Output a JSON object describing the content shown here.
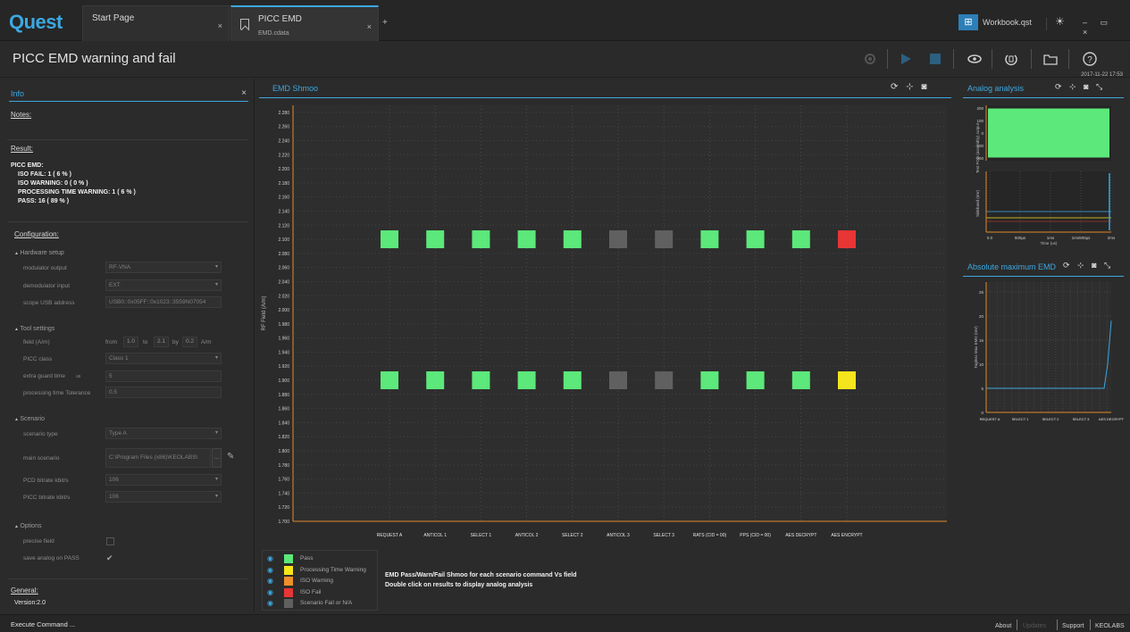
{
  "app": {
    "logo_text": "Quest"
  },
  "tabs": [
    {
      "title": "Start Page",
      "subtitle": "",
      "close": "×"
    },
    {
      "title": "PICC EMD",
      "subtitle": "EMD.cdata",
      "close": "×"
    }
  ],
  "tab_add": "+",
  "workbook": {
    "label": "Workbook.qst",
    "icon_glyph": "⊞"
  },
  "window_controls": "– ▭ ×",
  "brightness_glyph": "☀",
  "page_title": "PICC EMD warning and fail",
  "timestamp": "2017-11-22 17:53",
  "toolbar": {
    "icons": [
      "settings-icon",
      "play-icon",
      "stop-icon",
      "eye-icon",
      "rotate-icon",
      "folder-icon",
      "help-icon"
    ]
  },
  "info": {
    "title": "Info",
    "close": "×",
    "notes_label": "Notes:",
    "result_label": "Result:",
    "result_lines": [
      "PICC EMD:",
      "ISO FAIL: 1 ( 6 % )",
      "ISO WARNING: 0 ( 0 % )",
      "PROCESSING TIME WARNING: 1 ( 6 % )",
      "PASS: 16 ( 89 % )"
    ],
    "configuration_label": "Configuration:",
    "hardware": {
      "title": "Hardware setup",
      "modulator_label": "modulator output",
      "modulator_value": "RF-VNA",
      "demodulator_label": "demodulator input",
      "demodulator_value": "EXT",
      "scope_label": "scope USB address",
      "scope_value": "USB0::0x05FF::0x1023::3559N07054"
    },
    "tool": {
      "title": "Tool settings",
      "field_label": "field (A/m)",
      "from_label": "from",
      "from_value": "1.0",
      "to_label": "to",
      "to_value": "2.1",
      "by_label": "by",
      "by_value": "0.2",
      "unit": "A/m",
      "picc_class_label": "PICC class",
      "picc_class_value": "Class 1",
      "extra_guard_label": "extra guard time",
      "extra_guard_unit": "us",
      "extra_guard_value": "5",
      "proc_tol_label": "processing time Tolerance",
      "proc_tol_value": "0.5"
    },
    "scenario": {
      "title": "Scenario",
      "type_label": "scenario type",
      "type_value": "Type A",
      "main_label": "main scenario",
      "main_value": "C:\\Program Files (x86)\\KEOLABS\\",
      "pcd_label": "PCD bitrate kbit/s",
      "pcd_value": "106",
      "picc_label": "PICC bitrate kbit/s",
      "picc_value": "106"
    },
    "options": {
      "title": "Options",
      "precise_label": "precise field",
      "save_label": "save analog on PASS",
      "save_check": "✔"
    },
    "general_label": "General:",
    "version": "Version:2.0"
  },
  "shmoo": {
    "title": "EMD Shmoo",
    "header_icons": "⟳ ⊹ ◙",
    "legend": [
      {
        "label": "Pass",
        "color": "#5ce87a"
      },
      {
        "label": "Processing Time Warning",
        "color": "#f5e51c"
      },
      {
        "label": "ISO Warning",
        "color": "#f0902a"
      },
      {
        "label": "ISO Fail",
        "color": "#e83535"
      },
      {
        "label": "Scenario Fail or N/A",
        "color": "#606060"
      }
    ],
    "desc_line1": "EMD Pass/Warn/Fail Shmoo for each scenario command Vs field",
    "desc_line2": "Double click on results to display analog analysis"
  },
  "chart_data": [
    {
      "type": "heatmap",
      "title": "EMD Shmoo",
      "ylabel": "RF Field (A/m)",
      "ylim": [
        1.7,
        2.29
      ],
      "yticks": [
        "2.280",
        "2.260",
        "2.240",
        "2.220",
        "2.200",
        "2.180",
        "2.160",
        "2.140",
        "2.120",
        "2.100",
        "2.080",
        "2.060",
        "2.040",
        "2.020",
        "2.000",
        "1.980",
        "1.960",
        "1.940",
        "1.920",
        "1.900",
        "1.880",
        "1.860",
        "1.840",
        "1.820",
        "1.800",
        "1.780",
        "1.760",
        "1.740",
        "1.720",
        "1.700"
      ],
      "categories": [
        "REQUEST A",
        "ANTICOL 1",
        "SELECT 1",
        "ANTICOL 2",
        "SELECT 2",
        "ANTICOL 3",
        "SELECT 3",
        "RATS (CID = 00)",
        "PPS (CID = 00)",
        "AES DECRYPT",
        "AES ENCRYPT"
      ],
      "rows": [
        {
          "field": 2.1,
          "status": [
            "pass",
            "pass",
            "pass",
            "pass",
            "pass",
            "na",
            "na",
            "pass",
            "pass",
            "pass",
            "fail"
          ]
        },
        {
          "field": 1.9,
          "status": [
            "pass",
            "pass",
            "pass",
            "pass",
            "pass",
            "na",
            "na",
            "pass",
            "pass",
            "pass",
            "proc_warning"
          ]
        }
      ],
      "status_colors": {
        "pass": "#5ce87a",
        "proc_warning": "#f5e51c",
        "iso_warning": "#f0902a",
        "fail": "#e83535",
        "na": "#606060"
      }
    },
    {
      "type": "area",
      "title": "Analog analysis",
      "ylabel": "Test PCD (assembly) output",
      "yticks": [
        "200",
        "100",
        "0",
        "-100",
        "-200"
      ],
      "ylim": [
        -220,
        220
      ]
    },
    {
      "type": "line",
      "ylabel": "Sideband (mV)",
      "xlabel": "Time (us)",
      "xticks": [
        "0.0",
        "500µs",
        "1ms",
        "1ms500µs",
        "2ms"
      ]
    },
    {
      "type": "line",
      "title": "Absolute maximum EMD",
      "ylabel": "Tagless Max EMD (mV)",
      "yticks": [
        "25",
        "20",
        "15",
        "10",
        "5",
        "0"
      ],
      "ylim": [
        0,
        27
      ],
      "categories": [
        "REQUEST A",
        "SELECT 1",
        "SELECT 2",
        "SELECT 3",
        "AES DECRYPT"
      ]
    }
  ],
  "analog": {
    "title": "Analog analysis",
    "header_icons": "⟳ ⊹ ◙ ⤡"
  },
  "absmax": {
    "title": "Absolute maximum EMD",
    "header_icons": "⟳ ⊹ ◙ ⤡"
  },
  "status": {
    "execute": "Execute Command ...",
    "about": "About",
    "updates": "Updates",
    "support": "Support",
    "keolabs": "KEOLABS"
  },
  "colors": {
    "accent": "#3ca8e0"
  }
}
